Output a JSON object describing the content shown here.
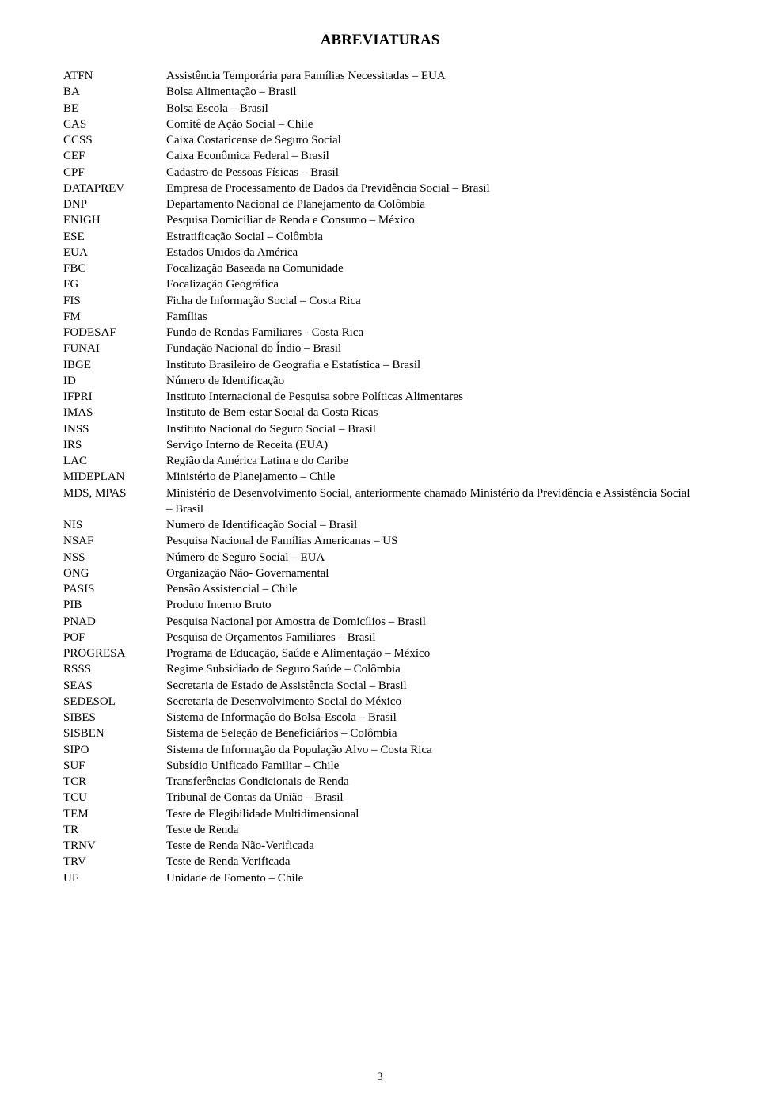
{
  "title": "ABREVIATURAS",
  "page_number": "3",
  "entries": [
    {
      "abbr": "ATFN",
      "def": "Assistência Temporária para Famílias Necessitadas – EUA"
    },
    {
      "abbr": "BA",
      "def": "Bolsa Alimentação – Brasil"
    },
    {
      "abbr": "BE",
      "def": "Bolsa Escola – Brasil"
    },
    {
      "abbr": "CAS",
      "def": "Comitê de Ação Social – Chile"
    },
    {
      "abbr": "CCSS",
      "def": "Caixa Costaricense de Seguro Social"
    },
    {
      "abbr": "CEF",
      "def": "Caixa Econômica Federal – Brasil"
    },
    {
      "abbr": "CPF",
      "def": "Cadastro de Pessoas Físicas – Brasil"
    },
    {
      "abbr": "DATAPREV",
      "def": "Empresa de Processamento de Dados da Previdência Social – Brasil"
    },
    {
      "abbr": "DNP",
      "def": "Departamento Nacional de Planejamento da Colômbia"
    },
    {
      "abbr": "ENIGH",
      "def": "Pesquisa Domiciliar de Renda e Consumo – México"
    },
    {
      "abbr": "ESE",
      "def": "Estratificação Social – Colômbia"
    },
    {
      "abbr": "EUA",
      "def": "Estados Unidos da América"
    },
    {
      "abbr": "FBC",
      "def": "Focalização Baseada na Comunidade"
    },
    {
      "abbr": "FG",
      "def": "Focalização Geográfica"
    },
    {
      "abbr": "FIS",
      "def": "Ficha de Informação Social – Costa Rica"
    },
    {
      "abbr": "FM",
      "def": "Famílias"
    },
    {
      "abbr": "FODESAF",
      "def": "Fundo de Rendas Familiares - Costa Rica"
    },
    {
      "abbr": "FUNAI",
      "def": "Fundação Nacional do Índio – Brasil"
    },
    {
      "abbr": "IBGE",
      "def": "Instituto Brasileiro de Geografia e Estatística – Brasil"
    },
    {
      "abbr": "ID",
      "def": "Número de Identificação"
    },
    {
      "abbr": "IFPRI",
      "def": "Instituto Internacional de Pesquisa sobre Políticas Alimentares"
    },
    {
      "abbr": "IMAS",
      "def": "Instituto de Bem-estar Social da Costa Ricas"
    },
    {
      "abbr": "INSS",
      "def": "Instituto Nacional do Seguro Social – Brasil"
    },
    {
      "abbr": "IRS",
      "def": "Serviço Interno de Receita (EUA)"
    },
    {
      "abbr": "LAC",
      "def": "Região da América Latina e do Caribe"
    },
    {
      "abbr": "MIDEPLAN",
      "def": "Ministério de Planejamento – Chile"
    },
    {
      "abbr": "MDS, MPAS",
      "def": "Ministério de Desenvolvimento Social, anteriormente chamado Ministério da Previdência e Assistência Social – Brasil"
    },
    {
      "abbr": "NIS",
      "def": "Numero de Identificação Social – Brasil"
    },
    {
      "abbr": "NSAF",
      "def": "Pesquisa Nacional de Famílias Americanas – US"
    },
    {
      "abbr": "NSS",
      "def": "Número de Seguro Social – EUA"
    },
    {
      "abbr": "ONG",
      "def": "Organização Não- Governamental"
    },
    {
      "abbr": "PASIS",
      "def": "Pensão Assistencial – Chile"
    },
    {
      "abbr": "PIB",
      "def": "Produto Interno Bruto"
    },
    {
      "abbr": "PNAD",
      "def": "Pesquisa Nacional por Amostra de Domicílios – Brasil"
    },
    {
      "abbr": "POF",
      "def": "Pesquisa de Orçamentos Familiares – Brasil"
    },
    {
      "abbr": "PROGRESA",
      "def": "Programa de Educação, Saúde e Alimentação – México"
    },
    {
      "abbr": "RSSS",
      "def": "Regime Subsidiado de Seguro Saúde – Colômbia"
    },
    {
      "abbr": "SEAS",
      "def": "Secretaria de Estado de Assistência Social – Brasil"
    },
    {
      "abbr": "SEDESOL",
      "def": "Secretaria de Desenvolvimento Social do México"
    },
    {
      "abbr": "SIBES",
      "def": "Sistema de Informação do Bolsa-Escola – Brasil"
    },
    {
      "abbr": "SISBEN",
      "def": "Sistema de Seleção de Beneficiários – Colômbia"
    },
    {
      "abbr": "SIPO",
      "def": "Sistema de Informação da População Alvo – Costa Rica"
    },
    {
      "abbr": "SUF",
      "def": "Subsídio Unificado Familiar – Chile"
    },
    {
      "abbr": "TCR",
      "def": "Transferências Condicionais de Renda"
    },
    {
      "abbr": "TCU",
      "def": "Tribunal de Contas da União – Brasil"
    },
    {
      "abbr": "TEM",
      "def": "Teste de Elegibilidade Multidimensional"
    },
    {
      "abbr": "TR",
      "def": "Teste de Renda"
    },
    {
      "abbr": "TRNV",
      "def": "Teste de Renda Não-Verificada"
    },
    {
      "abbr": "TRV",
      "def": "Teste de Renda Verificada"
    },
    {
      "abbr": "UF",
      "def": "Unidade de Fomento – Chile"
    }
  ]
}
